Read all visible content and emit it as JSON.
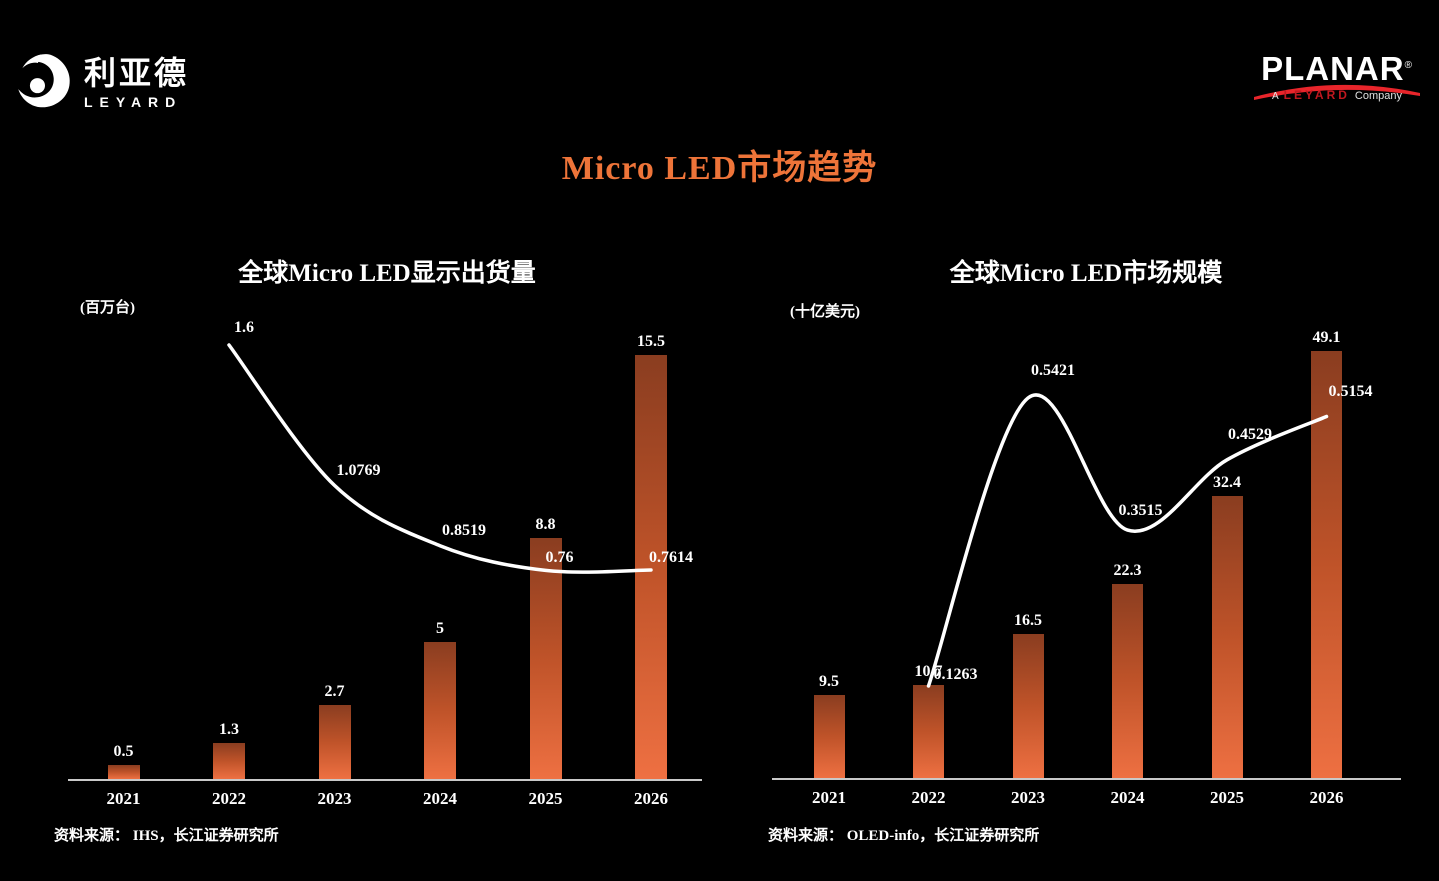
{
  "title": "Micro LED市场趋势",
  "logos": {
    "leyard": {
      "cn": "利亚德",
      "en": "LEYARD"
    },
    "planar": {
      "name": "PLANAR",
      "reg": "®",
      "tagline_a": "A",
      "tagline_brand": "LEYARD",
      "tagline_company": "Company"
    }
  },
  "colors": {
    "background": "#000000",
    "accent_orange": "#EE7439",
    "bar_gradient_top": "#8A3D20",
    "bar_gradient_bottom": "#EE7042",
    "trend_line": "#FFFFFF",
    "axis": "#C9C9C9",
    "planar_red": "#E8252B"
  },
  "chart_data": [
    {
      "type": "bar+line",
      "title": "全球Micro LED显示出货量",
      "unit": "(百万台)",
      "source": "资料来源： IHS，长江证券研究所",
      "categories": [
        "2021",
        "2022",
        "2023",
        "2024",
        "2025",
        "2026"
      ],
      "bars": {
        "values": [
          0.5,
          1.3,
          2.7,
          5,
          8.8,
          15.5
        ],
        "labels": [
          "0.5",
          "1.3",
          "2.7",
          "5",
          "8.8",
          "15.5"
        ]
      },
      "line": {
        "values": [
          null,
          1.6,
          1.0769,
          0.8519,
          0.76,
          0.7614
        ],
        "labels": [
          "1.6",
          "1.0769",
          "0.8519",
          "0.76",
          "0.7614"
        ]
      },
      "bar_axis_range": [
        0,
        15.7
      ],
      "line_axis_range": [
        0,
        1.65
      ],
      "grid": false,
      "legend": false
    },
    {
      "type": "bar+line",
      "title": "全球Micro LED市场规模",
      "unit": "(十亿美元)",
      "source": "资料来源： OLED-info，长江证券研究所",
      "categories": [
        "2021",
        "2022",
        "2023",
        "2024",
        "2025",
        "2026"
      ],
      "bars": {
        "values": [
          9.5,
          10.7,
          16.5,
          22.3,
          32.4,
          49.1
        ],
        "labels": [
          "9.5",
          "10.7",
          "16.5",
          "22.3",
          "32.4",
          "49.1"
        ]
      },
      "line": {
        "values": [
          null,
          0.1263,
          0.5421,
          0.3515,
          0.4529,
          0.5154
        ],
        "labels": [
          "0.1263",
          "0.5421",
          "0.3515",
          "0.4529",
          "0.5154"
        ]
      },
      "bar_axis_range": [
        0,
        49.5
      ],
      "line_axis_range": [
        0,
        0.62
      ],
      "grid": false,
      "legend": false
    }
  ]
}
